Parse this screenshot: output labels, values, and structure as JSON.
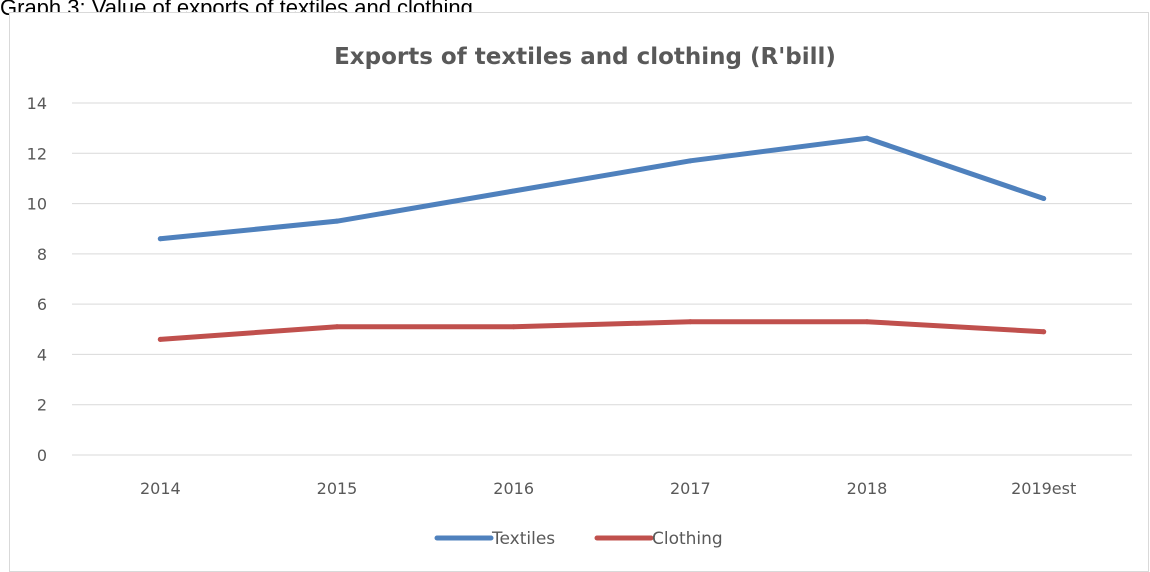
{
  "caption": "Graph 3: Value of exports of textiles and clothing",
  "colors": {
    "textiles": "#4f81bd",
    "clothing": "#c0504d",
    "text": "#595959",
    "grid": "#d9d9d9"
  },
  "chart_data": {
    "type": "line",
    "title": "Exports of textiles and clothing (R'bill)",
    "xlabel": "",
    "ylabel": "",
    "categories": [
      "2014",
      "2015",
      "2016",
      "2017",
      "2018",
      "2019est"
    ],
    "ylim": [
      0,
      14
    ],
    "yticks": [
      0,
      2,
      4,
      6,
      8,
      10,
      12,
      14
    ],
    "grid": true,
    "legend_position": "bottom",
    "series": [
      {
        "name": "Textiles",
        "color": "#4f81bd",
        "values": [
          8.6,
          9.3,
          10.5,
          11.7,
          12.6,
          10.2
        ]
      },
      {
        "name": "Clothing",
        "color": "#c0504d",
        "values": [
          4.6,
          5.1,
          5.1,
          5.3,
          5.3,
          4.9
        ]
      }
    ]
  }
}
